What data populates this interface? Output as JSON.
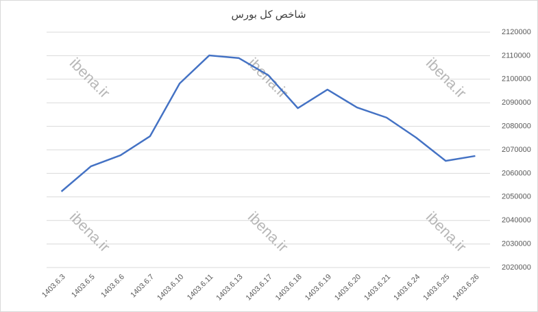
{
  "chart_data": {
    "type": "line",
    "title": "شاخص کل بورس",
    "categories": [
      "1403.6.3",
      "1403.6.5",
      "1403.6.6",
      "1403.6.7",
      "1403.6.10",
      "1403.6.11",
      "1403.6.13",
      "1403.6.17",
      "1403.6.18",
      "1403.6.19",
      "1403.6.20",
      "1403.6.21",
      "1403.6.24",
      "1403.6.25",
      "1403.6.26"
    ],
    "series": [
      {
        "name": "شاخص کل بورس",
        "color": "#4472c4",
        "values": [
          2052300,
          2063000,
          2067700,
          2075800,
          2098200,
          2110100,
          2109000,
          2101700,
          2087700,
          2095600,
          2088000,
          2083700,
          2075200,
          2065300,
          2067400
        ]
      }
    ],
    "ylim": [
      2020000,
      2120000
    ],
    "yticks": [
      2020000,
      2030000,
      2040000,
      2050000,
      2060000,
      2070000,
      2080000,
      2090000,
      2100000,
      2110000,
      2120000
    ],
    "grid": true,
    "watermark": "ibena.ir"
  }
}
